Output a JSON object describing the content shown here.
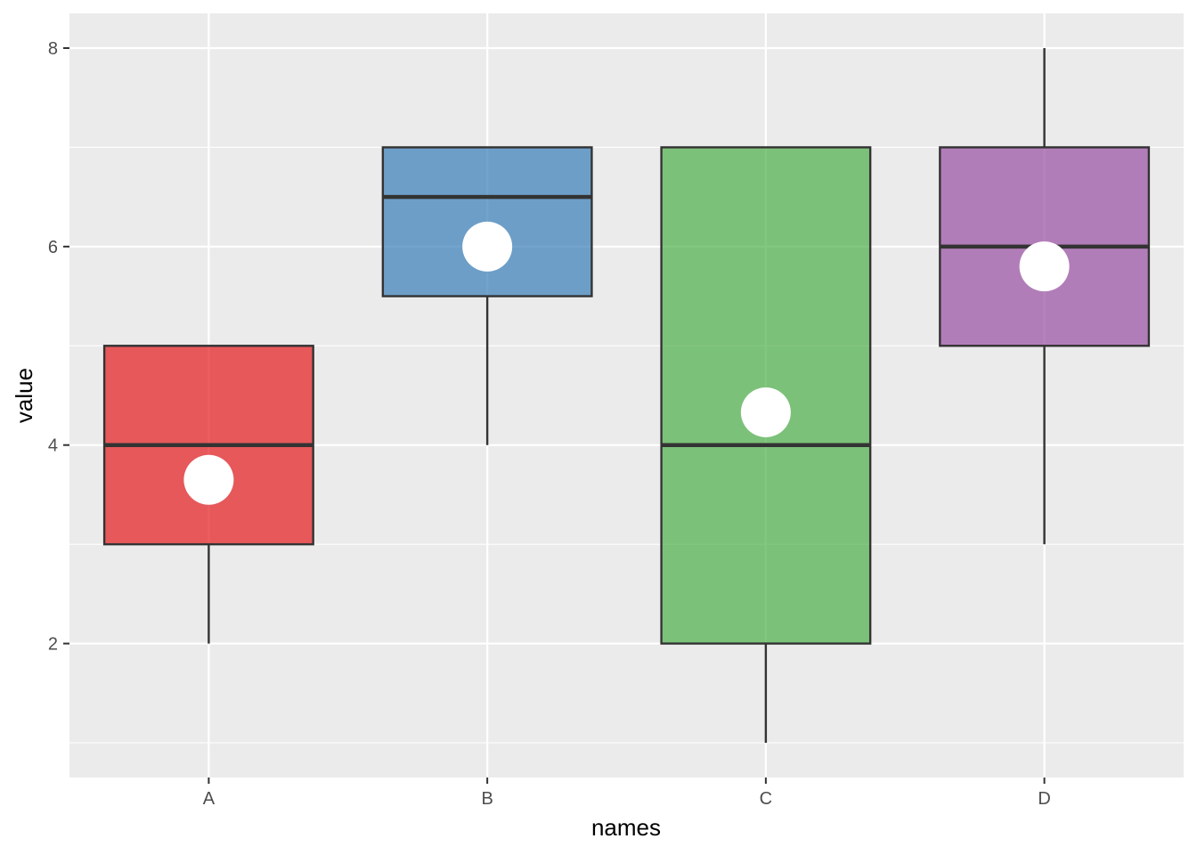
{
  "chart_data": {
    "type": "boxplot",
    "title": "",
    "xlabel": "names",
    "ylabel": "value",
    "categories": [
      "A",
      "B",
      "C",
      "D"
    ],
    "ylim": [
      0.65,
      8.35
    ],
    "y_ticks": [
      2,
      4,
      6,
      8
    ],
    "y_tick_labels": [
      "2",
      "4",
      "6",
      "8"
    ],
    "grid": true,
    "legend": "none",
    "boxes": [
      {
        "category": "A",
        "min": 2,
        "q1": 3,
        "median": 4,
        "q3": 5,
        "max": 5,
        "mean": 3.65,
        "color": "#E41A1C"
      },
      {
        "category": "B",
        "min": 4,
        "q1": 5.5,
        "median": 6.5,
        "q3": 7,
        "max": 7,
        "mean": 6.0,
        "color": "#377EB8"
      },
      {
        "category": "C",
        "min": 1,
        "q1": 2,
        "median": 4,
        "q3": 7,
        "max": 7,
        "mean": 4.33,
        "color": "#4DAF4A"
      },
      {
        "category": "D",
        "min": 3,
        "q1": 5,
        "median": 6,
        "q3": 7,
        "max": 8,
        "mean": 5.8,
        "color": "#984EA3"
      }
    ],
    "colors": {
      "panel_background": "#EBEBEB",
      "grid_line": "#FFFFFF",
      "box_outline": "#333333",
      "mean_point": "#FFFFFF"
    }
  }
}
